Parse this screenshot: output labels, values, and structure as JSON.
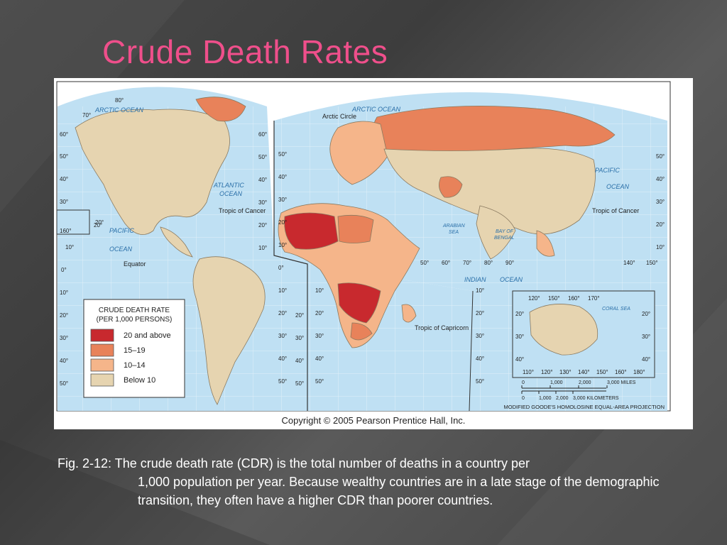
{
  "slide": {
    "title": "Crude Death Rates",
    "caption_first": "Fig. 2-12: The crude death rate (CDR) is the total number of deaths in a country per",
    "caption_rest": "1,000 population per year. Because wealthy countries are in a late stage of the demographic transition, they often have a higher CDR than poorer countries."
  },
  "map": {
    "copyright": "Copyright © 2005 Pearson Prentice Hall, Inc.",
    "projection": "MODIFIED GOODE'S HOMOLOSINE EQUAL-AREA PROJECTION",
    "legend": {
      "title_line1": "CRUDE DEATH RATE",
      "title_line2": "(PER 1,000 PERSONS)",
      "items": [
        {
          "label": "20 and above",
          "color": "#c8292e"
        },
        {
          "label": "15–19",
          "color": "#e8825a"
        },
        {
          "label": "10–14",
          "color": "#f5b58a"
        },
        {
          "label": "Below 10",
          "color": "#e6d4b0"
        }
      ]
    },
    "water_labels": {
      "arctic_left": "ARCTIC OCEAN",
      "arctic_right": "ARCTIC OCEAN",
      "atlantic_1": "ATLANTIC",
      "atlantic_2": "OCEAN",
      "pacific_left_1": "PACIFIC",
      "pacific_left_2": "OCEAN",
      "pacific_right_1": "PACIFIC",
      "pacific_right_2": "OCEAN",
      "indian_1": "INDIAN",
      "indian_2": "OCEAN",
      "arabian_1": "ARABIAN",
      "arabian_2": "SEA",
      "bengal_1": "BAY OF",
      "bengal_2": "BENGAL",
      "coral": "CORAL SEA"
    },
    "lines": {
      "arctic_circle": "Arctic Circle",
      "cancer_left": "Tropic of Cancer",
      "cancer_right": "Tropic of Cancer",
      "equator": "Equator",
      "capricorn": "Tropic of Capricorn"
    },
    "scale": {
      "miles_ticks": [
        "0",
        "1,000",
        "2,000",
        "3,000 MILES"
      ],
      "km_ticks": [
        "0",
        "1,000",
        "2,000",
        "3,000 KILOMETERS"
      ]
    },
    "graticule": {
      "left_lat": [
        "80°",
        "70°",
        "60°",
        "50°",
        "40°",
        "30°",
        "20°",
        "10°",
        "0°",
        "10°",
        "20°",
        "30°",
        "40°",
        "50°"
      ],
      "mid_lat_a": [
        "60°",
        "50°",
        "40°",
        "30°",
        "20°",
        "10°"
      ],
      "mid_lat_b": [
        "20°",
        "30°",
        "40°",
        "50°"
      ],
      "mid_lat_c": [
        "50°",
        "40°",
        "30°",
        "20°",
        "10°",
        "0°",
        "10°",
        "20°",
        "30°",
        "40°",
        "50°"
      ],
      "right_lat": [
        "50°",
        "40°",
        "30°",
        "20°",
        "10°"
      ],
      "left_lon_160": "160°",
      "left_lon_20": "20°",
      "indian_lon": [
        "50°",
        "60°",
        "70°",
        "80°",
        "90°"
      ],
      "pacific_lon": [
        "140°",
        "150°"
      ],
      "inset_top": [
        "120°",
        "150°",
        "160°",
        "170°"
      ],
      "inset_bottom": [
        "110°",
        "120°",
        "130°",
        "140°",
        "150°",
        "160°",
        "180°"
      ],
      "inset_lat_left": [
        "20°",
        "30°",
        "40°"
      ],
      "inset_lat_right": [
        "20°",
        "30°",
        "40°"
      ],
      "africa_lat": [
        "10°",
        "20°",
        "30°",
        "40°",
        "50°"
      ],
      "africa_lat_right": [
        "10°",
        "20°",
        "30°",
        "40°",
        "50°"
      ]
    }
  }
}
